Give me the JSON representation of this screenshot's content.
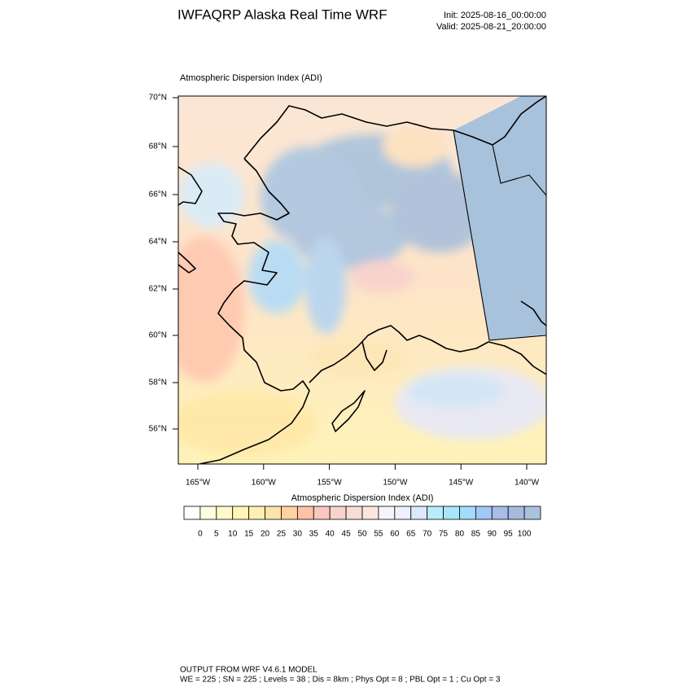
{
  "header": {
    "title": "IWFAQRP Alaska Real Time WRF",
    "init": "Init: 2025-08-16_00:00:00",
    "valid": "Valid: 2025-08-21_20:00:00"
  },
  "panel": {
    "title": "Atmospheric Dispersion Index   (ADI)"
  },
  "map": {
    "lat_labels": [
      "70°N",
      "68°N",
      "66°N",
      "64°N",
      "62°N",
      "60°N",
      "58°N",
      "56°N"
    ],
    "lon_labels": [
      "165°W",
      "160°W",
      "155°W",
      "150°W",
      "145°W",
      "140°W"
    ]
  },
  "colorbar": {
    "title": "Atmospheric Dispersion Index  (ADI)",
    "labels": [
      0,
      5,
      10,
      15,
      20,
      25,
      30,
      35,
      40,
      45,
      50,
      55,
      60,
      65,
      70,
      75,
      80,
      85,
      90,
      95,
      100
    ],
    "colors": [
      "#ffffff",
      "#fffde0",
      "#fffacc",
      "#fff5b8",
      "#ffefb0",
      "#ffe3a8",
      "#ffd3a0",
      "#ffc2a6",
      "#f9c8c0",
      "#f9d2cc",
      "#fadcd6",
      "#fbe6e2",
      "#f7f3f6",
      "#eef0fb",
      "#dbeafc",
      "#b8ecfb",
      "#a8e6fb",
      "#a4dbfb",
      "#a4c8f5",
      "#a6bde6",
      "#a8b9dc",
      "#a9c2dc"
    ]
  },
  "footer": {
    "line1": "OUTPUT FROM WRF V4.6.1 MODEL",
    "line2": "WE = 225 ; SN = 225 ; Levels = 38 ; Dis = 8km ; Phys Opt = 8 ; PBL Opt = 1 ; Cu Opt = 3"
  }
}
